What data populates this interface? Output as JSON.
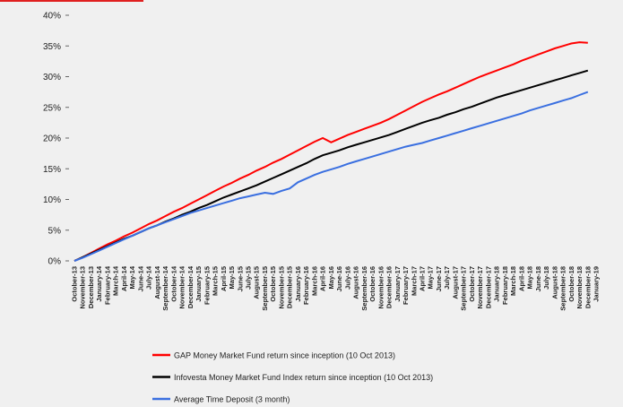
{
  "chart_data": {
    "type": "line",
    "categories": [
      "October-13",
      "November-13",
      "December-13",
      "January-14",
      "February-14",
      "March-14",
      "April-14",
      "May-14",
      "June-14",
      "July-14",
      "August-14",
      "September-14",
      "October-14",
      "November-14",
      "December-14",
      "January-15",
      "February-15",
      "March-15",
      "April-15",
      "May-15",
      "June-15",
      "July-15",
      "August-15",
      "September-15",
      "October-15",
      "November-15",
      "December-15",
      "January-16",
      "February-16",
      "March-16",
      "April-16",
      "May-16",
      "June-16",
      "July-16",
      "August-16",
      "September-16",
      "October-16",
      "November-16",
      "December-16",
      "January-17",
      "February-17",
      "March-17",
      "April-17",
      "May-17",
      "June-17",
      "July-17",
      "August-17",
      "September-17",
      "October-17",
      "November-17",
      "December-17",
      "January-18",
      "February-18",
      "March-18",
      "April-18",
      "May-18",
      "June-18",
      "July-18",
      "August-18",
      "September-18",
      "October-18",
      "November-18",
      "December-18",
      "January-19"
    ],
    "series": [
      {
        "name": "GAP Money Market Fund return since inception (10 Oct 2013)",
        "color": "#ff0000",
        "values": [
          0,
          0.6,
          1.3,
          2.0,
          2.7,
          3.3,
          4.0,
          4.6,
          5.3,
          6.0,
          6.6,
          7.3,
          8.0,
          8.6,
          9.3,
          10.0,
          10.7,
          11.4,
          12.1,
          12.7,
          13.4,
          14.0,
          14.7,
          15.3,
          16.0,
          16.6,
          17.3,
          18.0,
          18.7,
          19.4,
          20.0,
          19.3,
          19.9,
          20.5,
          21.0,
          21.5,
          22.0,
          22.5,
          23.1,
          23.8,
          24.5,
          25.2,
          25.9,
          26.5,
          27.1,
          27.6,
          28.2,
          28.8,
          29.4,
          30.0,
          30.5,
          31.0,
          31.5,
          32.0,
          32.6,
          33.1,
          33.6,
          34.1,
          34.6,
          35.0,
          35.4,
          35.6,
          35.5,
          null
        ]
      },
      {
        "name": "Infovesta Money Market Fund Index return since inception (10 Oct 2013)",
        "color": "#000000",
        "values": [
          0,
          0.6,
          1.2,
          1.8,
          2.4,
          3.0,
          3.6,
          4.1,
          4.7,
          5.3,
          5.8,
          6.4,
          6.9,
          7.5,
          8.0,
          8.6,
          9.1,
          9.7,
          10.3,
          10.8,
          11.3,
          11.8,
          12.3,
          12.9,
          13.5,
          14.1,
          14.7,
          15.3,
          15.9,
          16.6,
          17.2,
          17.6,
          18.0,
          18.5,
          18.9,
          19.3,
          19.7,
          20.1,
          20.5,
          21.0,
          21.5,
          22.0,
          22.5,
          22.9,
          23.3,
          23.8,
          24.2,
          24.7,
          25.1,
          25.6,
          26.1,
          26.6,
          27.0,
          27.4,
          27.8,
          28.2,
          28.6,
          29.0,
          29.4,
          29.8,
          30.2,
          30.6,
          31.0,
          null
        ]
      },
      {
        "name": "Average Time Deposit (3 month)",
        "color": "#3a6fe0",
        "values": [
          0,
          0.5,
          1.1,
          1.7,
          2.3,
          2.9,
          3.5,
          4.1,
          4.7,
          5.3,
          5.8,
          6.3,
          6.8,
          7.3,
          7.8,
          8.2,
          8.6,
          9.0,
          9.4,
          9.8,
          10.2,
          10.5,
          10.8,
          11.1,
          10.9,
          11.4,
          11.8,
          12.8,
          13.4,
          14.0,
          14.5,
          14.9,
          15.3,
          15.8,
          16.2,
          16.6,
          17.0,
          17.4,
          17.8,
          18.2,
          18.6,
          18.9,
          19.2,
          19.6,
          20.0,
          20.4,
          20.8,
          21.2,
          21.6,
          22.0,
          22.4,
          22.8,
          23.2,
          23.6,
          24.0,
          24.5,
          24.9,
          25.3,
          25.7,
          26.1,
          26.5,
          27.0,
          27.5,
          null
        ]
      }
    ],
    "ylim": [
      0,
      40
    ],
    "yticks": [
      {
        "value": 0,
        "label": "0%"
      },
      {
        "value": 5,
        "label": "5%"
      },
      {
        "value": 10,
        "label": "10%"
      },
      {
        "value": 15,
        "label": "15%"
      },
      {
        "value": 20,
        "label": "20%"
      },
      {
        "value": 25,
        "label": "25%"
      },
      {
        "value": 30,
        "label": "30%"
      },
      {
        "value": 35,
        "label": "35%"
      },
      {
        "value": 40,
        "label": "40%"
      }
    ]
  }
}
